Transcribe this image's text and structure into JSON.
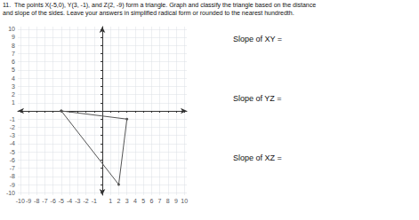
{
  "chart_data": {
    "type": "line",
    "title": "11.  The points X(-5,0), Y(3, -1), and Z(2, -9) form a triangle. Graph and classify the triangle based on the distance",
    "subtitle": "and slope of the sides. Leave your answers in simplified radical form or rounded to the nearest hundredth.",
    "x": [
      -5,
      3,
      2
    ],
    "values": [
      0,
      -1,
      -9
    ],
    "color": "#555555",
    "marker": "circle",
    "xlim": [
      -10.3,
      10.3
    ],
    "ylim": [
      -10.3,
      10.3
    ],
    "xticks": [
      -10,
      -9,
      -8,
      -7,
      -6,
      -5,
      -4,
      -3,
      -2,
      -1,
      1,
      2,
      3,
      4,
      5,
      6,
      7,
      8,
      9,
      10
    ],
    "yticks": [
      -10,
      -9,
      -8,
      -7,
      -6,
      -5,
      -4,
      -3,
      -2,
      -1,
      1,
      2,
      3,
      4,
      5,
      6,
      7,
      8,
      9,
      10
    ],
    "grid": true,
    "annotations": [
      "Slope of XY =",
      "Slope of YZ =",
      "Slope of XZ ="
    ]
  }
}
